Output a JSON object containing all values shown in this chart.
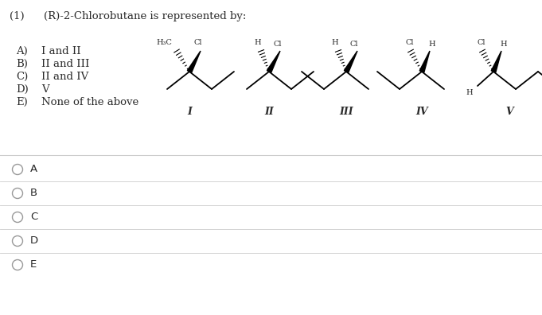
{
  "title_num": "(1)",
  "title_text": "(R)-2-Chlorobutane is represented by:",
  "choices": [
    [
      "A)",
      "I and II"
    ],
    [
      "B)",
      "II and III"
    ],
    [
      "C)",
      "II and IV"
    ],
    [
      "D)",
      "V"
    ],
    [
      "E)",
      "None of the above"
    ]
  ],
  "struct_labels": [
    "I",
    "II",
    "III",
    "IV",
    "V"
  ],
  "answer_labels": [
    "A",
    "B",
    "C",
    "D",
    "E"
  ],
  "bg_color": "#ffffff",
  "text_color": "#2a2a2a",
  "line_color": "#cccccc",
  "radio_color": "#999999"
}
